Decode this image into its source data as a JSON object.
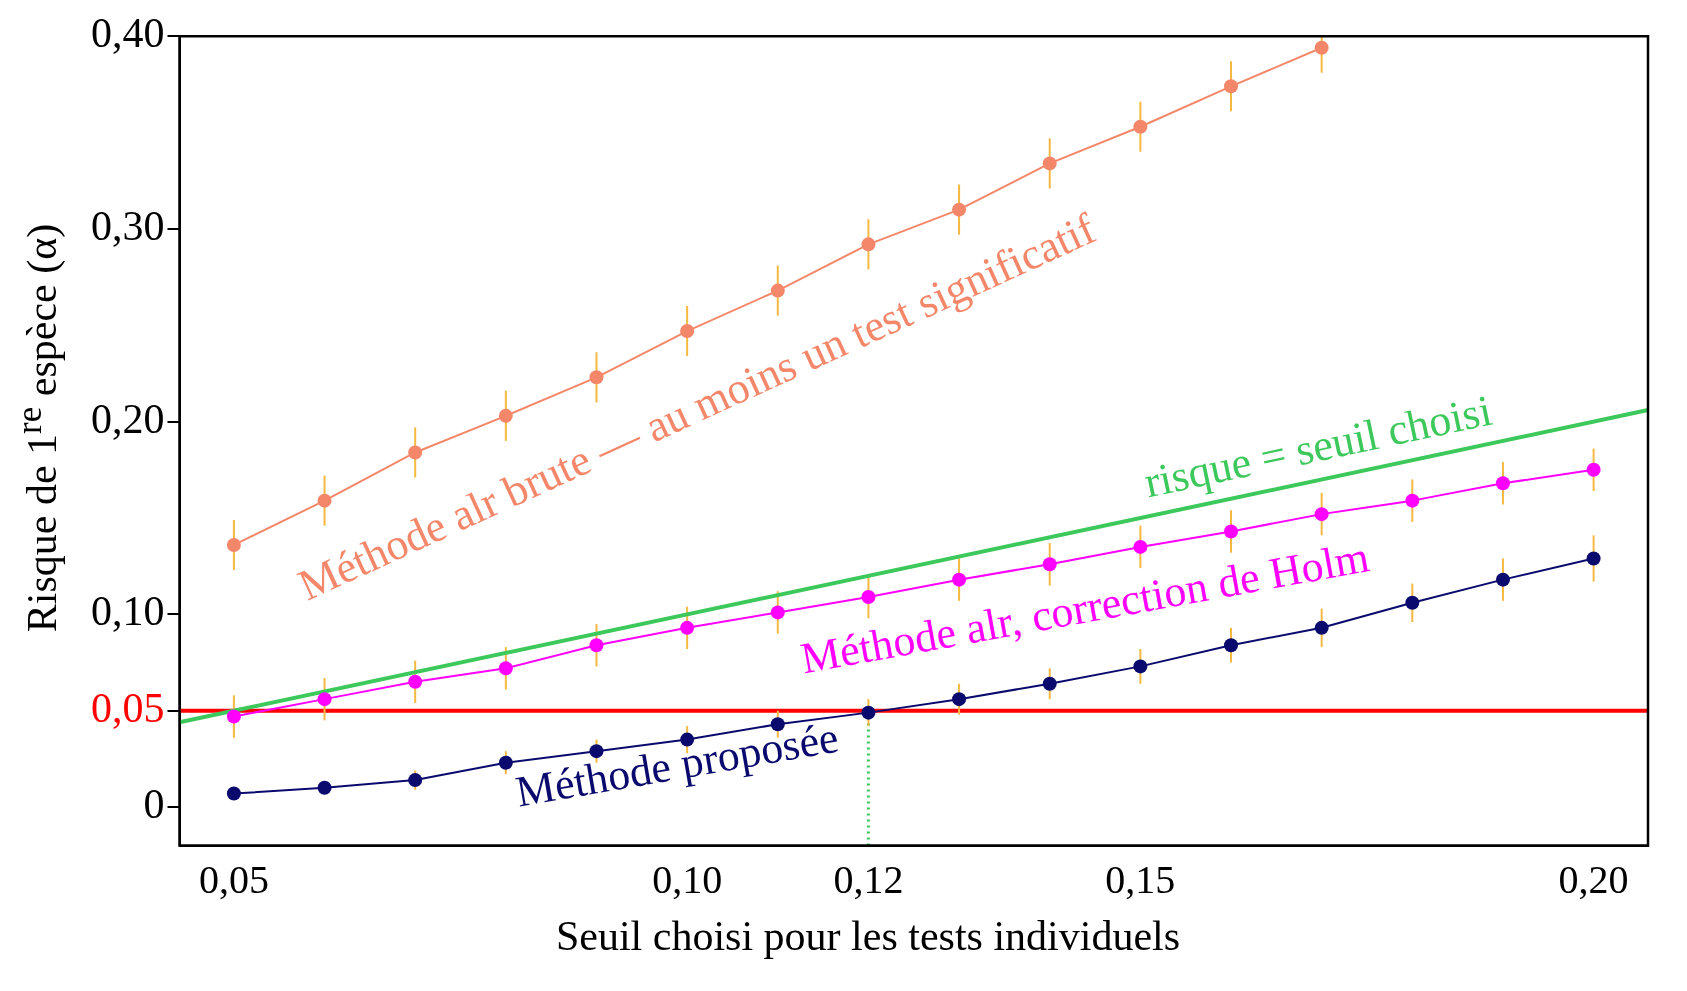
{
  "chart_data": {
    "type": "line",
    "xlabel": "Seuil choisi pour les tests individuels",
    "ylabel": "Risque de 1$^{re}$ espèce (α)",
    "x": [
      0.05,
      0.06,
      0.07,
      0.08,
      0.09,
      0.1,
      0.11,
      0.12,
      0.13,
      0.14,
      0.15,
      0.16,
      0.17,
      0.18,
      0.19,
      0.2
    ],
    "series": [
      {
        "name": "Méthode alr brute — au moins un test significatif",
        "color": "#f4876a",
        "values": [
          0.136,
          0.159,
          0.184,
          0.203,
          0.223,
          0.247,
          0.268,
          0.292,
          0.31,
          0.334,
          0.353,
          0.374,
          0.394,
          null,
          null,
          null
        ],
        "errors": [
          0.013,
          0.013,
          0.013,
          0.013,
          0.013,
          0.013,
          0.013,
          0.013,
          0.013,
          0.013,
          0.013,
          0.013,
          0.013,
          null,
          null,
          null
        ]
      },
      {
        "name": "Méthode alr, correction de Holm",
        "color": "#ff00ff",
        "values": [
          0.047,
          0.056,
          0.065,
          0.072,
          0.084,
          0.093,
          0.101,
          0.109,
          0.118,
          0.126,
          0.135,
          0.143,
          0.152,
          0.159,
          0.168,
          0.175
        ],
        "errors": [
          0.011,
          0.011,
          0.011,
          0.011,
          0.011,
          0.011,
          0.011,
          0.011,
          0.011,
          0.011,
          0.011,
          0.011,
          0.011,
          0.011,
          0.011,
          0.011
        ]
      },
      {
        "name": "Méthode proposée",
        "color": "#0a0a6e",
        "values": [
          0.007,
          0.01,
          0.014,
          0.023,
          0.029,
          0.035,
          0.043,
          0.049,
          0.056,
          0.064,
          0.073,
          0.084,
          0.093,
          0.106,
          0.118,
          0.129
        ],
        "errors": [
          null,
          null,
          0.005,
          0.006,
          0.006,
          0.007,
          0.007,
          0.007,
          0.008,
          0.008,
          0.009,
          0.009,
          0.01,
          0.01,
          0.011,
          0.012
        ]
      },
      {
        "name": "risque = seuil choisi",
        "color": "#3cc85a",
        "x": [
          0.044,
          0.206
        ],
        "values": [
          0.044,
          0.206
        ],
        "marker": "none"
      }
    ],
    "ref_lines": [
      {
        "axis": "y",
        "value": 0.05,
        "color": "#ff0000",
        "line_style": "solid"
      },
      {
        "axis": "x",
        "value": 0.12,
        "color": "#3cc85a",
        "line_style": "dotted"
      }
    ],
    "xlim": [
      0.044,
      0.206
    ],
    "xticks": [
      {
        "value": 0.05,
        "label": "0,05"
      },
      {
        "value": 0.1,
        "label": "0,10"
      },
      {
        "value": 0.12,
        "label": "0,12"
      },
      {
        "value": 0.15,
        "label": "0,15"
      },
      {
        "value": 0.2,
        "label": "0,20"
      }
    ],
    "ylim": [
      -0.02,
      0.4
    ],
    "yticks": [
      {
        "value": 0,
        "label": "0"
      },
      {
        "value": 0.05,
        "label": "0,05"
      },
      {
        "value": 0.1,
        "label": "0,10"
      },
      {
        "value": 0.2,
        "label": "0,20"
      },
      {
        "value": 0.3,
        "label": "0,30"
      },
      {
        "value": 0.4,
        "label": "0,40"
      }
    ],
    "grid": false,
    "legend": false,
    "marker": "circle",
    "line_style": "solid"
  }
}
